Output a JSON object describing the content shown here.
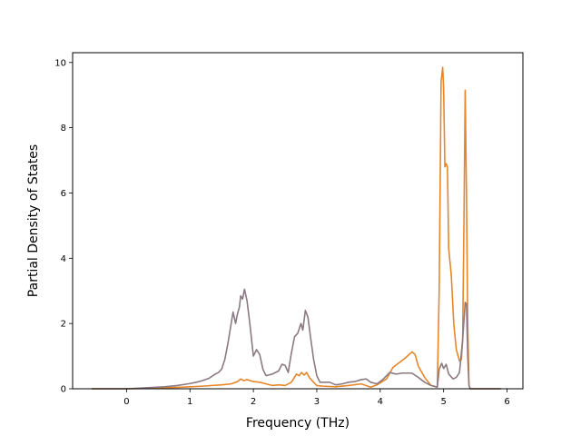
{
  "chart_data": {
    "type": "line",
    "title": "",
    "xlabel": "Frequency (THz)",
    "ylabel": "Partial Density of States",
    "xlim": [
      -0.85,
      6.25
    ],
    "ylim": [
      0,
      10.3
    ],
    "xticks": [
      0,
      1,
      2,
      3,
      4,
      5,
      6
    ],
    "yticks": [
      0,
      2,
      4,
      6,
      8,
      10
    ],
    "grid": false,
    "legend": "none",
    "series": [
      {
        "color": "#e6862a",
        "points": [
          [
            -0.55,
            0.0
          ],
          [
            0.0,
            0.0
          ],
          [
            0.3,
            0.01
          ],
          [
            0.6,
            0.03
          ],
          [
            0.9,
            0.05
          ],
          [
            1.2,
            0.08
          ],
          [
            1.5,
            0.12
          ],
          [
            1.65,
            0.15
          ],
          [
            1.75,
            0.22
          ],
          [
            1.8,
            0.3
          ],
          [
            1.85,
            0.25
          ],
          [
            1.9,
            0.28
          ],
          [
            2.0,
            0.22
          ],
          [
            2.1,
            0.2
          ],
          [
            2.2,
            0.15
          ],
          [
            2.3,
            0.1
          ],
          [
            2.4,
            0.12
          ],
          [
            2.5,
            0.1
          ],
          [
            2.6,
            0.2
          ],
          [
            2.68,
            0.45
          ],
          [
            2.72,
            0.4
          ],
          [
            2.76,
            0.5
          ],
          [
            2.8,
            0.42
          ],
          [
            2.84,
            0.5
          ],
          [
            2.88,
            0.35
          ],
          [
            2.95,
            0.2
          ],
          [
            3.0,
            0.1
          ],
          [
            3.1,
            0.08
          ],
          [
            3.3,
            0.06
          ],
          [
            3.5,
            0.1
          ],
          [
            3.7,
            0.15
          ],
          [
            3.85,
            0.05
          ],
          [
            3.95,
            0.12
          ],
          [
            4.1,
            0.3
          ],
          [
            4.2,
            0.65
          ],
          [
            4.3,
            0.8
          ],
          [
            4.4,
            0.95
          ],
          [
            4.5,
            1.13
          ],
          [
            4.55,
            1.05
          ],
          [
            4.6,
            0.7
          ],
          [
            4.7,
            0.35
          ],
          [
            4.8,
            0.1
          ],
          [
            4.9,
            0.05
          ],
          [
            4.93,
            3.0
          ],
          [
            4.96,
            9.4
          ],
          [
            4.985,
            9.85
          ],
          [
            5.0,
            9.2
          ],
          [
            5.02,
            6.8
          ],
          [
            5.04,
            6.9
          ],
          [
            5.06,
            6.8
          ],
          [
            5.08,
            4.3
          ],
          [
            5.12,
            3.5
          ],
          [
            5.16,
            2.0
          ],
          [
            5.2,
            1.2
          ],
          [
            5.25,
            0.85
          ],
          [
            5.28,
            0.9
          ],
          [
            5.3,
            1.5
          ],
          [
            5.32,
            5.0
          ],
          [
            5.34,
            9.15
          ],
          [
            5.36,
            6.0
          ],
          [
            5.38,
            2.0
          ],
          [
            5.4,
            0.1
          ],
          [
            5.42,
            0.0
          ],
          [
            5.9,
            0.0
          ]
        ]
      },
      {
        "color": "#8c7a82",
        "points": [
          [
            -0.55,
            0.0
          ],
          [
            0.0,
            0.0
          ],
          [
            0.2,
            0.02
          ],
          [
            0.4,
            0.04
          ],
          [
            0.6,
            0.06
          ],
          [
            0.8,
            0.1
          ],
          [
            1.0,
            0.16
          ],
          [
            1.1,
            0.2
          ],
          [
            1.2,
            0.25
          ],
          [
            1.3,
            0.32
          ],
          [
            1.4,
            0.45
          ],
          [
            1.45,
            0.5
          ],
          [
            1.5,
            0.6
          ],
          [
            1.55,
            0.9
          ],
          [
            1.6,
            1.4
          ],
          [
            1.65,
            2.0
          ],
          [
            1.68,
            2.35
          ],
          [
            1.72,
            2.0
          ],
          [
            1.75,
            2.3
          ],
          [
            1.78,
            2.5
          ],
          [
            1.8,
            2.85
          ],
          [
            1.83,
            2.75
          ],
          [
            1.86,
            3.05
          ],
          [
            1.9,
            2.7
          ],
          [
            1.95,
            1.9
          ],
          [
            2.0,
            1.0
          ],
          [
            2.05,
            1.2
          ],
          [
            2.1,
            1.05
          ],
          [
            2.15,
            0.6
          ],
          [
            2.2,
            0.4
          ],
          [
            2.3,
            0.45
          ],
          [
            2.4,
            0.55
          ],
          [
            2.45,
            0.75
          ],
          [
            2.5,
            0.72
          ],
          [
            2.55,
            0.5
          ],
          [
            2.6,
            1.1
          ],
          [
            2.65,
            1.6
          ],
          [
            2.7,
            1.7
          ],
          [
            2.75,
            2.0
          ],
          [
            2.78,
            1.8
          ],
          [
            2.82,
            2.4
          ],
          [
            2.86,
            2.2
          ],
          [
            2.9,
            1.6
          ],
          [
            2.95,
            0.9
          ],
          [
            3.0,
            0.4
          ],
          [
            3.05,
            0.2
          ],
          [
            3.2,
            0.2
          ],
          [
            3.3,
            0.12
          ],
          [
            3.4,
            0.15
          ],
          [
            3.5,
            0.2
          ],
          [
            3.6,
            0.22
          ],
          [
            3.7,
            0.28
          ],
          [
            3.78,
            0.3
          ],
          [
            3.85,
            0.2
          ],
          [
            3.95,
            0.15
          ],
          [
            4.05,
            0.3
          ],
          [
            4.15,
            0.5
          ],
          [
            4.25,
            0.45
          ],
          [
            4.35,
            0.48
          ],
          [
            4.5,
            0.48
          ],
          [
            4.6,
            0.35
          ],
          [
            4.7,
            0.2
          ],
          [
            4.8,
            0.1
          ],
          [
            4.9,
            0.05
          ],
          [
            4.93,
            0.6
          ],
          [
            4.97,
            0.78
          ],
          [
            5.0,
            0.62
          ],
          [
            5.04,
            0.75
          ],
          [
            5.08,
            0.45
          ],
          [
            5.15,
            0.3
          ],
          [
            5.2,
            0.35
          ],
          [
            5.25,
            0.5
          ],
          [
            5.3,
            1.5
          ],
          [
            5.34,
            2.65
          ],
          [
            5.36,
            2.6
          ],
          [
            5.38,
            1.0
          ],
          [
            5.4,
            0.1
          ],
          [
            5.42,
            0.0
          ],
          [
            5.9,
            0.0
          ]
        ]
      }
    ]
  }
}
